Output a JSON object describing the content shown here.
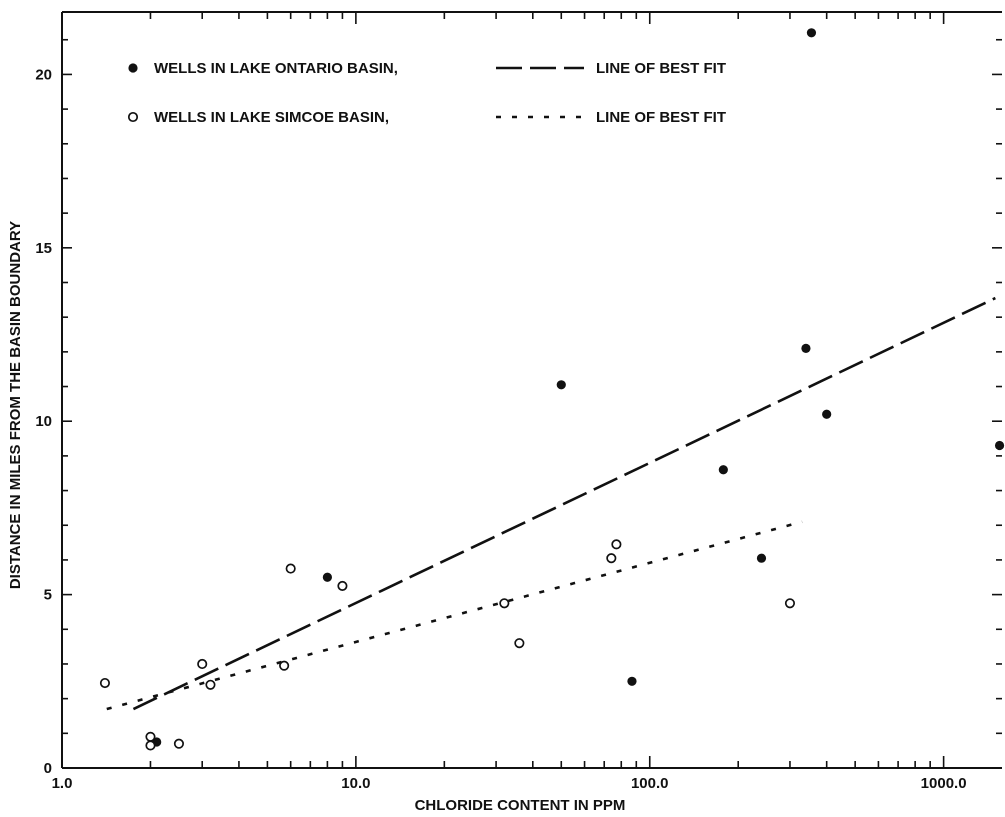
{
  "chart_data": {
    "type": "scatter",
    "title": "",
    "xlabel": "CHLORIDE CONTENT IN PPM",
    "ylabel": "DISTANCE IN MILES FROM THE BASIN BOUNDARY",
    "x_scale": "log",
    "xlim": [
      1.0,
      1580.0
    ],
    "ylim": [
      0,
      21.8
    ],
    "x_tick_values": [
      1.0,
      10.0,
      100.0,
      1000.0
    ],
    "x_tick_labels": [
      "1.0",
      "10.0",
      "100.0",
      "1000.0"
    ],
    "y_tick_values": [
      0,
      5,
      10,
      15,
      20
    ],
    "y_tick_labels": [
      "0",
      "5",
      "10",
      "15",
      "20"
    ],
    "grid": false,
    "legend_position": "top-left",
    "series": [
      {
        "name": "WELLS IN LAKE ONTARIO BASIN,",
        "marker": "filled-circle",
        "points": [
          {
            "x": 2.1,
            "y": 0.75
          },
          {
            "x": 8.0,
            "y": 5.5
          },
          {
            "x": 50.0,
            "y": 11.05
          },
          {
            "x": 87.0,
            "y": 2.5
          },
          {
            "x": 178.0,
            "y": 8.6
          },
          {
            "x": 240.0,
            "y": 6.05
          },
          {
            "x": 340.0,
            "y": 12.1
          },
          {
            "x": 355.0,
            "y": 21.2
          },
          {
            "x": 400.0,
            "y": 10.2
          },
          {
            "x": 1550.0,
            "y": 9.3
          }
        ],
        "fit": {
          "label": "LINE OF BEST FIT",
          "style": "long-dash",
          "from": {
            "x": 1.75,
            "y": 1.7
          },
          "to": {
            "x": 1500.0,
            "y": 13.55
          }
        }
      },
      {
        "name": "WELLS IN LAKE SIMCOE BASIN,",
        "marker": "open-circle",
        "points": [
          {
            "x": 1.4,
            "y": 2.45
          },
          {
            "x": 2.0,
            "y": 0.9
          },
          {
            "x": 2.0,
            "y": 0.65
          },
          {
            "x": 2.5,
            "y": 0.7
          },
          {
            "x": 3.0,
            "y": 3.0
          },
          {
            "x": 3.2,
            "y": 2.4
          },
          {
            "x": 5.7,
            "y": 2.95
          },
          {
            "x": 6.0,
            "y": 5.75
          },
          {
            "x": 9.0,
            "y": 5.25
          },
          {
            "x": 32.0,
            "y": 4.75
          },
          {
            "x": 36.0,
            "y": 3.6
          },
          {
            "x": 74.0,
            "y": 6.05
          },
          {
            "x": 77.0,
            "y": 6.45
          },
          {
            "x": 300.0,
            "y": 4.75
          }
        ],
        "fit": {
          "label": "LINE OF BEST FIT",
          "style": "dotted",
          "from": {
            "x": 1.42,
            "y": 1.7
          },
          "to": {
            "x": 330.0,
            "y": 7.1
          }
        }
      }
    ]
  }
}
